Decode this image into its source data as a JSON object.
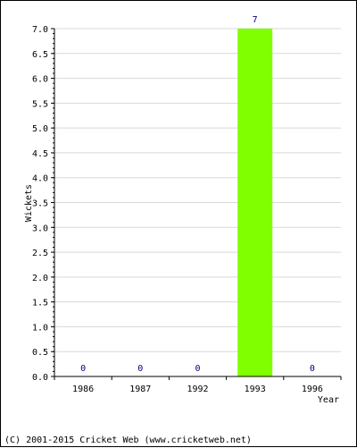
{
  "chart_data": {
    "type": "bar",
    "categories": [
      "1986",
      "1987",
      "1992",
      "1993",
      "1996"
    ],
    "values": [
      0,
      0,
      0,
      7,
      0
    ],
    "data_labels": [
      "0",
      "0",
      "0",
      "7",
      "0"
    ],
    "xlabel": "Year",
    "ylabel": "Wickets",
    "ylim": [
      0,
      7
    ],
    "yticks": [
      "0.0",
      "0.5",
      "1.0",
      "1.5",
      "2.0",
      "2.5",
      "3.0",
      "3.5",
      "4.0",
      "4.5",
      "5.0",
      "5.5",
      "6.0",
      "6.5",
      "7.0"
    ],
    "grid": true,
    "bar_color": "#80ff00",
    "label_color": "#000080"
  },
  "footer": "(C) 2001-2015 Cricket Web (www.cricketweb.net)"
}
